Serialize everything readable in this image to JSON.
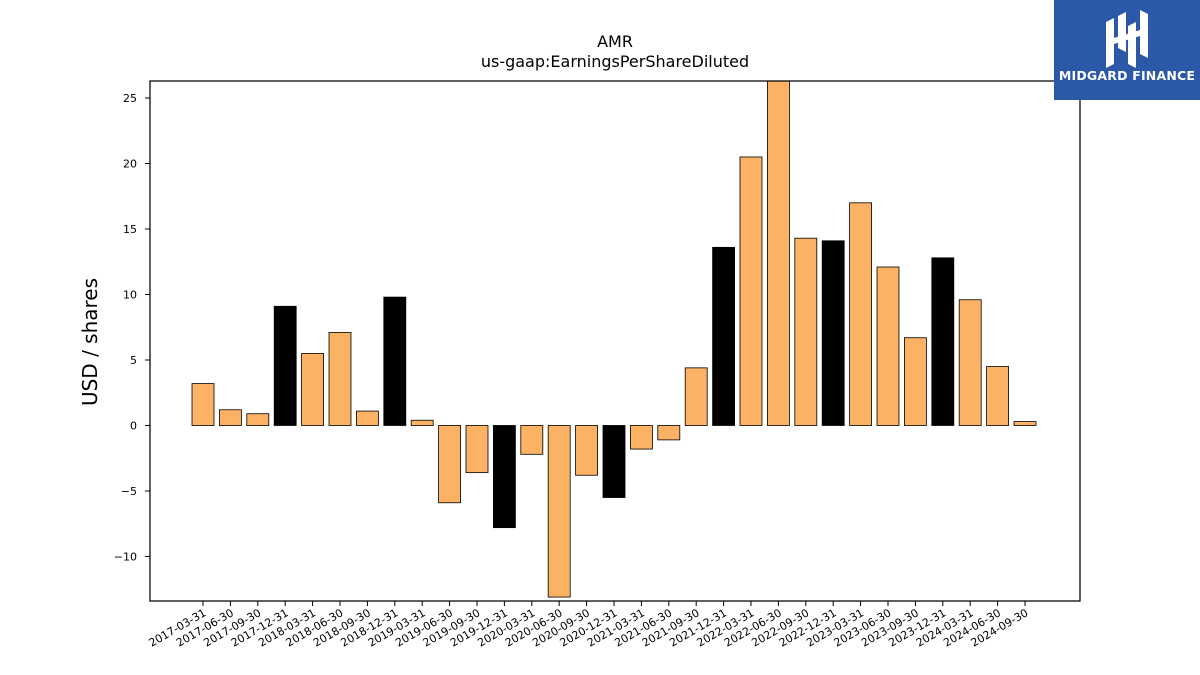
{
  "chart_data": {
    "type": "bar",
    "title": "AMR",
    "subtitle": "us-gaap:EarningsPerShareDiluted",
    "xlabel": "",
    "ylabel": "USD / shares",
    "ylim": [
      -13.4,
      26.3
    ],
    "yticks": [
      -10,
      -5,
      0,
      5,
      10,
      15,
      20,
      25
    ],
    "grid": false,
    "colors": {
      "quarter": "#fbb264",
      "year_end": "#000000",
      "edge": "#000000"
    },
    "categories": [
      "2017-03-31",
      "2017-06-30",
      "2017-09-30",
      "2017-12-31",
      "2018-03-31",
      "2018-06-30",
      "2018-09-30",
      "2018-12-31",
      "2019-03-31",
      "2019-06-30",
      "2019-09-30",
      "2019-12-31",
      "2020-03-31",
      "2020-06-30",
      "2020-09-30",
      "2020-12-31",
      "2021-03-31",
      "2021-06-30",
      "2021-09-30",
      "2021-12-31",
      "2022-03-31",
      "2022-06-30",
      "2022-09-30",
      "2022-12-31",
      "2023-03-31",
      "2023-06-30",
      "2023-09-30",
      "2023-12-31",
      "2024-03-31",
      "2024-06-30",
      "2024-09-30"
    ],
    "values": [
      3.2,
      1.2,
      0.9,
      9.1,
      5.5,
      7.1,
      1.1,
      9.8,
      0.4,
      -5.9,
      -3.6,
      -7.8,
      -2.2,
      -13.1,
      -3.8,
      -5.5,
      -1.8,
      -1.1,
      4.4,
      13.6,
      20.5,
      26.3,
      14.3,
      14.1,
      17.0,
      12.1,
      6.7,
      12.8,
      9.6,
      4.5,
      0.3
    ],
    "year_end": [
      false,
      false,
      false,
      true,
      false,
      false,
      false,
      true,
      false,
      false,
      false,
      true,
      false,
      false,
      false,
      true,
      false,
      false,
      false,
      true,
      false,
      false,
      false,
      true,
      false,
      false,
      false,
      true,
      false,
      false,
      false
    ]
  },
  "logo": {
    "text": "MIDGARD FINANCE"
  }
}
